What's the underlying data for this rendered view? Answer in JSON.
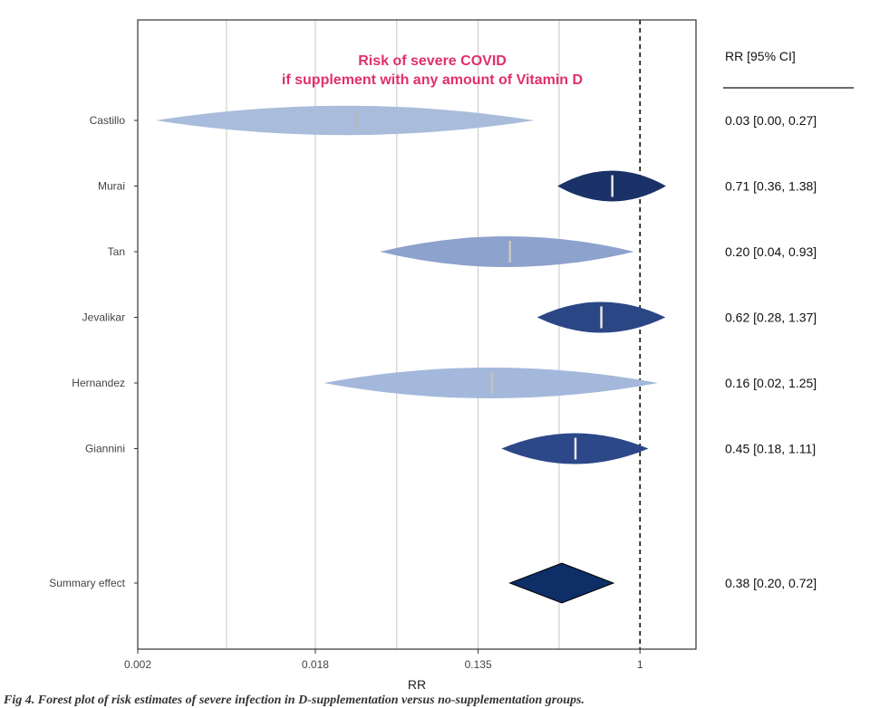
{
  "chart_data": {
    "type": "forest",
    "title_line1": "Risk of severe COVID",
    "title_line2": "if supplement with any amount of Vitamin D",
    "title_color": "#e0306a",
    "xlabel": "RR",
    "x_scale": "log",
    "xlim": [
      0.002,
      2.0
    ],
    "xticks": [
      0.002,
      0.018,
      0.135,
      1
    ],
    "xtick_labels": [
      "0.002",
      "0.018",
      "0.135",
      "1"
    ],
    "reference_line": 1,
    "ci_header": "RR [95% CI]",
    "studies": [
      {
        "name": "Castillo",
        "rr": 0.03,
        "lo": 0.0025,
        "hi": 0.27,
        "ci_text": "0.03 [0.00, 0.27]",
        "color": "#a9bcdb",
        "center_color": "#b8b8b8"
      },
      {
        "name": "Murai",
        "rr": 0.71,
        "lo": 0.36,
        "hi": 1.38,
        "ci_text": "0.71 [0.36, 1.38]",
        "color": "#1a3268",
        "center_color": "#e8e8e8"
      },
      {
        "name": "Tan",
        "rr": 0.2,
        "lo": 0.04,
        "hi": 0.93,
        "ci_text": "0.20 [0.04, 0.93]",
        "color": "#8da2cc",
        "center_color": "#c8c8c8"
      },
      {
        "name": "Jevalikar",
        "rr": 0.62,
        "lo": 0.28,
        "hi": 1.37,
        "ci_text": "0.62 [0.28, 1.37]",
        "color": "#2a4684",
        "center_color": "#e8e8e8"
      },
      {
        "name": "Hernandez",
        "rr": 0.16,
        "lo": 0.02,
        "hi": 1.25,
        "ci_text": "0.16 [0.02, 1.25]",
        "color": "#a4b8db",
        "center_color": "#c0c0c0"
      },
      {
        "name": "Giannini",
        "rr": 0.45,
        "lo": 0.18,
        "hi": 1.11,
        "ci_text": "0.45 [0.18, 1.11]",
        "color": "#2c4888",
        "center_color": "#e8e8e8"
      }
    ],
    "summary": {
      "name": "Summary effect",
      "rr": 0.38,
      "lo": 0.2,
      "hi": 0.72,
      "ci_text": "0.38 [0.20, 0.72]",
      "color": "#0d2e66"
    }
  },
  "caption": "Fig 4. Forest plot of risk estimates of severe infection in D-supplementation versus no-supplementation groups."
}
